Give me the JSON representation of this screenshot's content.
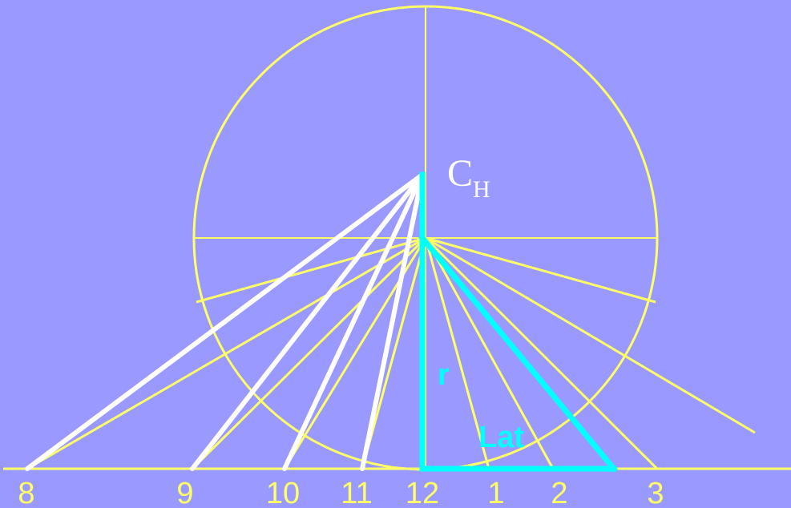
{
  "labels": {
    "center_main": "C",
    "center_sub": "H",
    "r_label": "r",
    "lat_label": "Lat"
  },
  "hour_labels": [
    "8",
    "9",
    "10",
    "11",
    "12",
    "1",
    "2",
    "3"
  ],
  "colors": {
    "background": "#9999ff",
    "yellow": "#ffff66",
    "white": "#ffffff",
    "cyan": "#00ffff"
  }
}
